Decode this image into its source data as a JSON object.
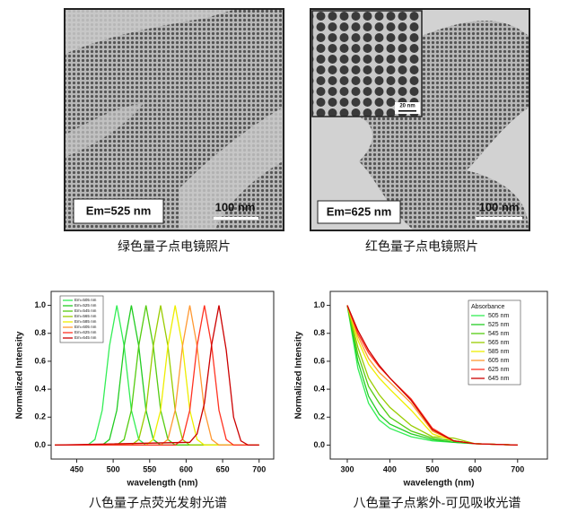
{
  "images": [
    {
      "label": "Em=525 nm",
      "scale_bar": "100 nm",
      "caption": "绿色量子点电镜照片"
    },
    {
      "label": "Em=625 nm",
      "scale_bar": "100 nm",
      "inset_scale_bar": "20 nm",
      "caption": "红色量子点电镜照片"
    }
  ],
  "chart_data": [
    {
      "type": "line",
      "caption": "八色量子点荧光发射光谱",
      "x_label": "wavelength (nm)",
      "y_label": "Normalized Intensity",
      "xlim": [
        415,
        720
      ],
      "xticks": [
        450,
        500,
        550,
        600,
        650,
        700
      ],
      "ylim": [
        -0.1,
        1.1
      ],
      "yticks": [
        {
          "value": 0,
          "label": "0.0"
        },
        {
          "value": 0.2,
          "label": "0.2"
        },
        {
          "value": 0.4,
          "label": "0.4"
        },
        {
          "value": 0.6,
          "label": "0.6"
        },
        {
          "value": 0.8,
          "label": "0.8"
        },
        {
          "value": 1,
          "label": "1.0"
        }
      ],
      "legend": "upper left",
      "series": [
        {
          "name": "Em=505 nm",
          "color": "#33ee55",
          "x": [
            420,
            465,
            475,
            485,
            495,
            505,
            515,
            525,
            535,
            545,
            700
          ],
          "values": [
            0,
            0,
            0.04,
            0.25,
            0.71,
            1,
            0.71,
            0.25,
            0.04,
            0,
            0
          ]
        },
        {
          "name": "Em=525 nm",
          "color": "#22cc22",
          "x": [
            420,
            485,
            495,
            505,
            515,
            525,
            535,
            545,
            555,
            565,
            700
          ],
          "values": [
            0,
            0,
            0.04,
            0.25,
            0.71,
            1,
            0.71,
            0.25,
            0.04,
            0,
            0
          ]
        },
        {
          "name": "Em=545 nm",
          "color": "#55cc11",
          "x": [
            420,
            505,
            515,
            525,
            535,
            545,
            555,
            565,
            575,
            585,
            700
          ],
          "values": [
            0,
            0,
            0.04,
            0.25,
            0.71,
            1,
            0.71,
            0.25,
            0.04,
            0,
            0
          ]
        },
        {
          "name": "Em=565 nm",
          "color": "#99cc00",
          "x": [
            420,
            525,
            535,
            545,
            555,
            565,
            575,
            585,
            595,
            605,
            700
          ],
          "values": [
            0,
            0,
            0.04,
            0.25,
            0.71,
            1,
            0.71,
            0.25,
            0.04,
            0,
            0
          ]
        },
        {
          "name": "Em=585 nm",
          "color": "#eeee00",
          "x": [
            420,
            545,
            555,
            565,
            575,
            585,
            595,
            605,
            615,
            625,
            700
          ],
          "values": [
            0,
            0,
            0.04,
            0.25,
            0.71,
            1,
            0.71,
            0.25,
            0.04,
            0,
            0
          ]
        },
        {
          "name": "Em=605 nm",
          "color": "#ff9933",
          "x": [
            420,
            565,
            575,
            585,
            595,
            605,
            615,
            625,
            635,
            645,
            700
          ],
          "values": [
            0,
            0,
            0.04,
            0.25,
            0.71,
            1,
            0.71,
            0.25,
            0.04,
            0,
            0
          ]
        },
        {
          "name": "Em=625 nm",
          "color": "#ff3322",
          "x": [
            420,
            585,
            595,
            605,
            615,
            625,
            635,
            645,
            655,
            665,
            700
          ],
          "values": [
            0,
            0,
            0.04,
            0.25,
            0.71,
            1,
            0.71,
            0.25,
            0.04,
            0,
            0
          ]
        },
        {
          "name": "Em=645 nm",
          "color": "#cc0000",
          "x": [
            420,
            605,
            615,
            625,
            635,
            645,
            655,
            665,
            675,
            685,
            700
          ],
          "values": [
            0,
            0.02,
            0.08,
            0.3,
            0.72,
            1,
            0.68,
            0.2,
            0.03,
            0,
            0
          ]
        }
      ]
    },
    {
      "type": "line",
      "caption": "八色量子点紫外-可见吸收光谱",
      "x_label": "wavelength (nm)",
      "y_label": "Normalized Intensity",
      "xlim": [
        260,
        770
      ],
      "xticks": [
        300,
        400,
        500,
        600,
        700
      ],
      "ylim": [
        -0.1,
        1.1
      ],
      "yticks": [
        {
          "value": 0,
          "label": "0.0"
        },
        {
          "value": 0.2,
          "label": "0.2"
        },
        {
          "value": 0.4,
          "label": "0.4"
        },
        {
          "value": 0.6,
          "label": "0.6"
        },
        {
          "value": 0.8,
          "label": "0.8"
        },
        {
          "value": 1,
          "label": "1.0"
        }
      ],
      "legend": "upper right",
      "legend_title": "Absorbance",
      "x": [
        300,
        325,
        350,
        375,
        400,
        450,
        500,
        550,
        600,
        700
      ],
      "series": [
        {
          "name": "505 nm",
          "color": "#33ee55",
          "values": [
            1,
            0.55,
            0.3,
            0.18,
            0.12,
            0.06,
            0.03,
            0.02,
            0.01,
            0
          ]
        },
        {
          "name": "525 nm",
          "color": "#22cc22",
          "values": [
            1,
            0.6,
            0.35,
            0.22,
            0.15,
            0.08,
            0.04,
            0.02,
            0.01,
            0
          ]
        },
        {
          "name": "545 nm",
          "color": "#55cc11",
          "values": [
            1,
            0.65,
            0.42,
            0.3,
            0.2,
            0.1,
            0.05,
            0.03,
            0.01,
            0
          ]
        },
        {
          "name": "565 nm",
          "color": "#99cc00",
          "values": [
            1,
            0.7,
            0.48,
            0.36,
            0.27,
            0.14,
            0.06,
            0.05,
            0.01,
            0
          ]
        },
        {
          "name": "585 nm",
          "color": "#eeee00",
          "values": [
            1,
            0.75,
            0.58,
            0.48,
            0.4,
            0.25,
            0.08,
            0.03,
            0.01,
            0
          ]
        },
        {
          "name": "605 nm",
          "color": "#ff9933",
          "values": [
            1,
            0.78,
            0.62,
            0.52,
            0.45,
            0.3,
            0.1,
            0.03,
            0.01,
            0
          ]
        },
        {
          "name": "625 nm",
          "color": "#ff3322",
          "values": [
            1,
            0.8,
            0.66,
            0.56,
            0.48,
            0.33,
            0.12,
            0.03,
            0.01,
            0
          ]
        },
        {
          "name": "645 nm",
          "color": "#cc0000",
          "values": [
            1,
            0.82,
            0.68,
            0.57,
            0.48,
            0.32,
            0.11,
            0.03,
            0.01,
            0
          ]
        }
      ]
    }
  ]
}
